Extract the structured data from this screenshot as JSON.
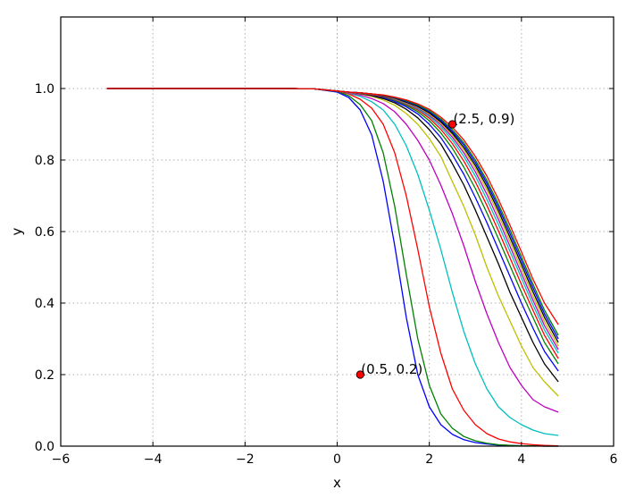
{
  "chart_data": {
    "type": "line",
    "title": "",
    "xlabel": "x",
    "ylabel": "y",
    "xlim": [
      -6,
      6
    ],
    "ylim": [
      0,
      1.2
    ],
    "xticks": [
      -6,
      -4,
      -2,
      0,
      2,
      4,
      6
    ],
    "xtick_labels": [
      "−6",
      "−4",
      "−2",
      "0",
      "2",
      "4",
      "6"
    ],
    "yticks": [
      0.0,
      0.2,
      0.4,
      0.6,
      0.8,
      1.0
    ],
    "ytick_labels": [
      "0.0",
      "0.2",
      "0.4",
      "0.6",
      "0.8",
      "1.0"
    ],
    "grid": true,
    "x": [
      -5.0,
      -4.5,
      -4.0,
      -3.5,
      -3.0,
      -2.5,
      -2.0,
      -1.5,
      -1.0,
      -0.5,
      0.0,
      0.25,
      0.5,
      0.75,
      1.0,
      1.25,
      1.5,
      1.75,
      2.0,
      2.25,
      2.5,
      2.75,
      3.0,
      3.25,
      3.5,
      3.75,
      4.0,
      4.25,
      4.5,
      4.8
    ],
    "series": [
      {
        "color": "#0000ff",
        "values": [
          1.0,
          1.0,
          1.0,
          1.0,
          1.0,
          1.0,
          1.0,
          1.0,
          1.0,
          0.999,
          0.99,
          0.975,
          0.94,
          0.87,
          0.74,
          0.56,
          0.36,
          0.2,
          0.11,
          0.06,
          0.033,
          0.018,
          0.01,
          0.006,
          0.003,
          0.002,
          0.001,
          0.001,
          0.0,
          0.0
        ]
      },
      {
        "color": "#008000",
        "values": [
          1.0,
          1.0,
          1.0,
          1.0,
          1.0,
          1.0,
          1.0,
          1.0,
          1.0,
          0.999,
          0.992,
          0.98,
          0.955,
          0.91,
          0.82,
          0.67,
          0.48,
          0.3,
          0.17,
          0.09,
          0.05,
          0.027,
          0.015,
          0.008,
          0.004,
          0.002,
          0.001,
          0.001,
          0.0,
          0.0
        ]
      },
      {
        "color": "#ff0000",
        "values": [
          1.0,
          1.0,
          1.0,
          1.0,
          1.0,
          1.0,
          1.0,
          1.0,
          1.0,
          0.999,
          0.993,
          0.985,
          0.97,
          0.945,
          0.9,
          0.82,
          0.7,
          0.55,
          0.39,
          0.26,
          0.16,
          0.1,
          0.06,
          0.035,
          0.02,
          0.012,
          0.007,
          0.004,
          0.002,
          0.001
        ]
      },
      {
        "color": "#00bfbf",
        "values": [
          1.0,
          1.0,
          1.0,
          1.0,
          1.0,
          1.0,
          1.0,
          1.0,
          1.0,
          0.999,
          0.993,
          0.987,
          0.978,
          0.963,
          0.94,
          0.9,
          0.84,
          0.76,
          0.66,
          0.55,
          0.43,
          0.32,
          0.23,
          0.16,
          0.11,
          0.08,
          0.06,
          0.045,
          0.035,
          0.03
        ]
      },
      {
        "color": "#bf00bf",
        "values": [
          1.0,
          1.0,
          1.0,
          1.0,
          1.0,
          1.0,
          1.0,
          1.0,
          1.0,
          0.999,
          0.993,
          0.988,
          0.982,
          0.972,
          0.958,
          0.935,
          0.9,
          0.855,
          0.8,
          0.73,
          0.65,
          0.56,
          0.46,
          0.37,
          0.29,
          0.22,
          0.17,
          0.13,
          0.11,
          0.095
        ]
      },
      {
        "color": "#bfbf00",
        "values": [
          1.0,
          1.0,
          1.0,
          1.0,
          1.0,
          1.0,
          1.0,
          1.0,
          1.0,
          0.999,
          0.993,
          0.989,
          0.985,
          0.978,
          0.968,
          0.953,
          0.93,
          0.9,
          0.86,
          0.81,
          0.74,
          0.67,
          0.59,
          0.5,
          0.42,
          0.35,
          0.28,
          0.22,
          0.18,
          0.14
        ]
      },
      {
        "color": "#000000",
        "values": [
          1.0,
          1.0,
          1.0,
          1.0,
          1.0,
          1.0,
          1.0,
          1.0,
          1.0,
          0.999,
          0.993,
          0.99,
          0.986,
          0.98,
          0.972,
          0.96,
          0.942,
          0.918,
          0.885,
          0.845,
          0.79,
          0.73,
          0.66,
          0.585,
          0.51,
          0.43,
          0.36,
          0.29,
          0.23,
          0.18
        ]
      },
      {
        "color": "#0000ff",
        "values": [
          1.0,
          1.0,
          1.0,
          1.0,
          1.0,
          1.0,
          1.0,
          1.0,
          1.0,
          0.999,
          0.993,
          0.99,
          0.987,
          0.982,
          0.975,
          0.964,
          0.949,
          0.929,
          0.9,
          0.863,
          0.815,
          0.76,
          0.695,
          0.625,
          0.55,
          0.475,
          0.4,
          0.33,
          0.265,
          0.21
        ]
      },
      {
        "color": "#008000",
        "values": [
          1.0,
          1.0,
          1.0,
          1.0,
          1.0,
          1.0,
          1.0,
          1.0,
          1.0,
          0.999,
          0.993,
          0.99,
          0.987,
          0.983,
          0.977,
          0.967,
          0.953,
          0.935,
          0.91,
          0.876,
          0.833,
          0.78,
          0.72,
          0.652,
          0.58,
          0.505,
          0.43,
          0.36,
          0.29,
          0.23
        ]
      },
      {
        "color": "#ff0000",
        "values": [
          1.0,
          1.0,
          1.0,
          1.0,
          1.0,
          1.0,
          1.0,
          1.0,
          1.0,
          0.999,
          0.993,
          0.99,
          0.987,
          0.983,
          0.978,
          0.969,
          0.956,
          0.94,
          0.917,
          0.886,
          0.846,
          0.797,
          0.739,
          0.673,
          0.602,
          0.527,
          0.452,
          0.38,
          0.31,
          0.245
        ]
      },
      {
        "color": "#00bfbf",
        "values": [
          1.0,
          1.0,
          1.0,
          1.0,
          1.0,
          1.0,
          1.0,
          1.0,
          1.0,
          0.999,
          0.993,
          0.99,
          0.987,
          0.984,
          0.979,
          0.97,
          0.958,
          0.943,
          0.922,
          0.893,
          0.856,
          0.81,
          0.755,
          0.69,
          0.62,
          0.545,
          0.47,
          0.395,
          0.325,
          0.26
        ]
      },
      {
        "color": "#bf00bf",
        "values": [
          1.0,
          1.0,
          1.0,
          1.0,
          1.0,
          1.0,
          1.0,
          1.0,
          1.0,
          0.999,
          0.993,
          0.99,
          0.988,
          0.984,
          0.979,
          0.971,
          0.96,
          0.946,
          0.926,
          0.899,
          0.864,
          0.82,
          0.767,
          0.704,
          0.634,
          0.559,
          0.483,
          0.408,
          0.337,
          0.27
        ]
      },
      {
        "color": "#bfbf00",
        "values": [
          1.0,
          1.0,
          1.0,
          1.0,
          1.0,
          1.0,
          1.0,
          1.0,
          1.0,
          0.999,
          0.993,
          0.99,
          0.988,
          0.984,
          0.98,
          0.972,
          0.961,
          0.948,
          0.929,
          0.903,
          0.87,
          0.828,
          0.777,
          0.716,
          0.647,
          0.572,
          0.496,
          0.42,
          0.348,
          0.28
        ]
      },
      {
        "color": "#000000",
        "values": [
          1.0,
          1.0,
          1.0,
          1.0,
          1.0,
          1.0,
          1.0,
          1.0,
          1.0,
          0.999,
          0.993,
          0.99,
          0.988,
          0.985,
          0.98,
          0.973,
          0.962,
          0.95,
          0.932,
          0.907,
          0.875,
          0.835,
          0.785,
          0.726,
          0.658,
          0.584,
          0.508,
          0.432,
          0.36,
          0.29
        ]
      },
      {
        "color": "#0000ff",
        "values": [
          1.0,
          1.0,
          1.0,
          1.0,
          1.0,
          1.0,
          1.0,
          1.0,
          1.0,
          0.999,
          0.993,
          0.99,
          0.988,
          0.985,
          0.981,
          0.974,
          0.964,
          0.952,
          0.935,
          0.911,
          0.88,
          0.842,
          0.793,
          0.735,
          0.668,
          0.595,
          0.519,
          0.443,
          0.37,
          0.3
        ]
      },
      {
        "color": "#008000",
        "values": [
          1.0,
          1.0,
          1.0,
          1.0,
          1.0,
          1.0,
          1.0,
          1.0,
          1.0,
          0.999,
          0.993,
          0.99,
          0.988,
          0.985,
          0.981,
          0.975,
          0.966,
          0.954,
          0.938,
          0.915,
          0.885,
          0.848,
          0.8,
          0.743,
          0.677,
          0.605,
          0.529,
          0.453,
          0.38,
          0.31
        ]
      },
      {
        "color": "#ff0000",
        "values": [
          1.0,
          1.0,
          1.0,
          1.0,
          1.0,
          1.0,
          1.0,
          1.0,
          1.0,
          0.999,
          0.993,
          0.99,
          0.988,
          0.985,
          0.982,
          0.976,
          0.968,
          0.957,
          0.942,
          0.92,
          0.892,
          0.856,
          0.81,
          0.755,
          0.69,
          0.618,
          0.543,
          0.467,
          0.4,
          0.34
        ]
      }
    ],
    "annotations": [
      {
        "x": 2.5,
        "y": 0.9,
        "label": "(2.5, 0.9)"
      },
      {
        "x": 0.5,
        "y": 0.2,
        "label": "(0.5, 0.2)"
      }
    ],
    "marker_color": "#ff0000"
  }
}
